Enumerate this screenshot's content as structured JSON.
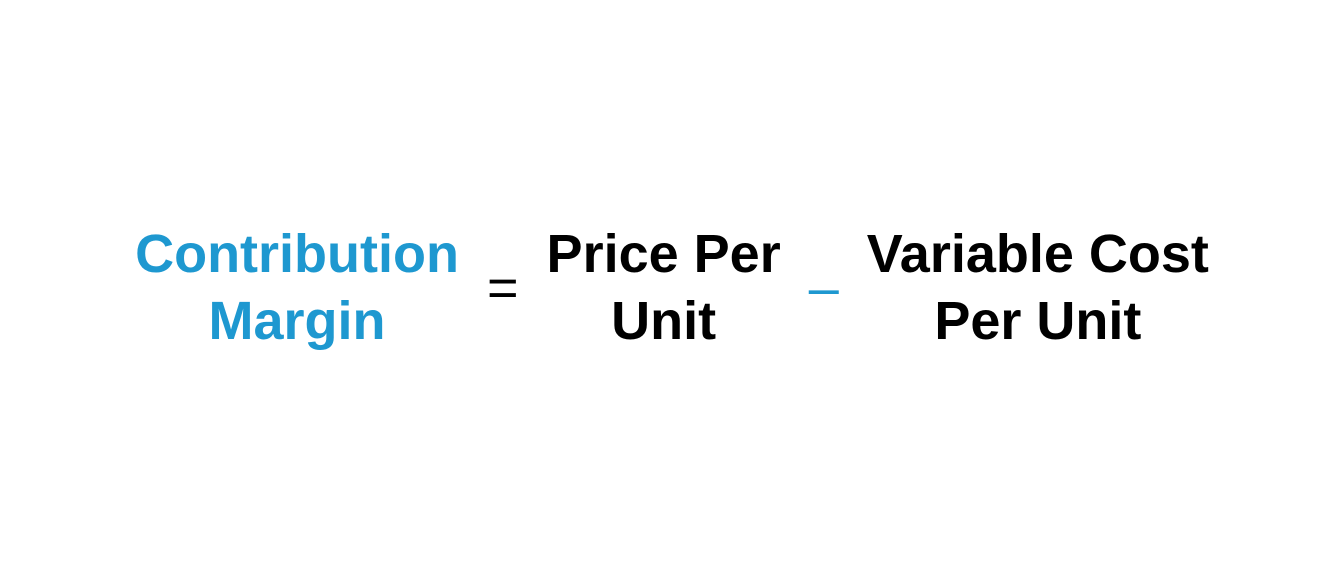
{
  "formula": {
    "type": "equation",
    "background_color": "#ffffff",
    "accent_color": "#1e98d0",
    "text_color": "#000000",
    "font_family": "Segoe UI",
    "font_size_pt": 40,
    "font_weight": 600,
    "result": {
      "line1": "Contribution",
      "line2": "Margin",
      "color": "#1e98d0"
    },
    "equals": "=",
    "operand1": {
      "line1": "Price Per",
      "line2": "Unit",
      "color": "#000000"
    },
    "minus": "–",
    "operand2": {
      "line1": "Variable Cost",
      "line2": "Per Unit",
      "color": "#000000"
    }
  }
}
